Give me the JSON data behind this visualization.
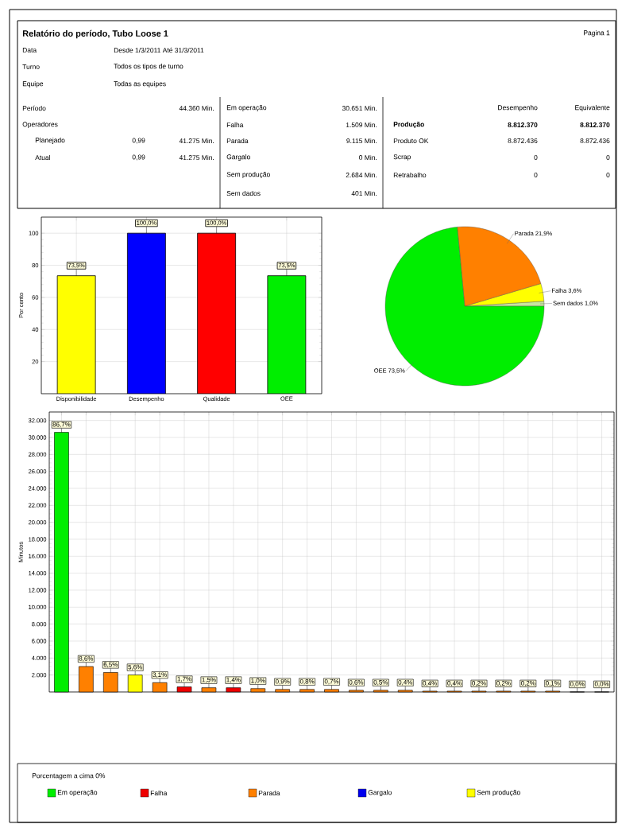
{
  "chart_data": [
    {
      "type": "other",
      "title": "Relatório do período,  Tubo Loose 1",
      "annotations": [
        "Pagina 1",
        "Data",
        "Desde 1/3/2011 Até 31/3/2011",
        "Turno",
        "Todos os tipos de turno",
        "Equipe",
        "Todas as equipes",
        "Período",
        "44.360 Min.",
        "Operadores",
        "Planejado",
        "0,99",
        "41.275 Min.",
        "Atual",
        "0,99",
        "41.275 Min.",
        "Em operação",
        "30.651 Min.",
        "Falha",
        "1.509 Min.",
        "Parada",
        "9.115 Min.",
        "Gargalo",
        "0 Min.",
        "Sem produção",
        "2.684 Min.",
        "Sem dados",
        "401 Min.",
        "Desempenho",
        "Equivalente",
        "Produção",
        "8.812.370",
        "8.812.370",
        "Produto OK",
        "8.872.436",
        "8.872.436",
        "Scrap",
        "0",
        "0",
        "Retrabalho",
        "0",
        "0"
      ]
    },
    {
      "type": "bar",
      "ylabel": "Por cento",
      "categories": [
        "Disponibilidade",
        "Desempenho",
        "Qualidade",
        "OEE"
      ],
      "values": [
        73.5,
        100,
        100,
        73.5
      ],
      "value_labels": [
        "73,5%",
        "100,0%",
        "100,0%",
        "73,5%"
      ],
      "colors": [
        "#ffff00",
        "#0000ff",
        "#ff0000",
        "#00ee00"
      ],
      "ylim": [
        0,
        110
      ],
      "yticks": [
        20,
        40,
        60,
        80,
        100
      ],
      "grid": true
    },
    {
      "type": "pie",
      "categories": [
        "Sem dados",
        "Falha",
        "Parada",
        "OEE"
      ],
      "values": [
        1.0,
        3.6,
        21.9,
        73.5
      ],
      "value_labels": [
        "1,0%",
        "3,6%",
        "21,9%",
        "73,5%"
      ],
      "colors": [
        "#c8e6a0",
        "#ffff00",
        "#ff8000",
        "#00ee00"
      ]
    },
    {
      "type": "bar",
      "ylabel": "Minutos",
      "legend_title": "Porcentagem a cima 0%",
      "legend": "bottom",
      "grid": true,
      "ylim": [
        0,
        33000
      ],
      "yticks": [
        {
          "value": 2000,
          "label": "2.000"
        },
        {
          "value": 4000,
          "label": "4.000"
        },
        {
          "value": 6000,
          "label": "6.000"
        },
        {
          "value": 8000,
          "label": "8.000"
        },
        {
          "value": 10000,
          "label": "10.000"
        },
        {
          "value": 12000,
          "label": "12.000"
        },
        {
          "value": 14000,
          "label": "14.000"
        },
        {
          "value": 16000,
          "label": "16.000"
        },
        {
          "value": 18000,
          "label": "18.000"
        },
        {
          "value": 20000,
          "label": "20.000"
        },
        {
          "value": 22000,
          "label": "22.000"
        },
        {
          "value": 24000,
          "label": "24.000"
        },
        {
          "value": 26000,
          "label": "26.000"
        },
        {
          "value": 28000,
          "label": "28.000"
        },
        {
          "value": 30000,
          "label": "30.000"
        },
        {
          "value": 32000,
          "label": "32.000"
        }
      ],
      "categories": [
        null,
        null,
        null,
        null,
        null,
        null,
        null,
        null,
        null,
        null,
        null,
        null,
        null,
        null,
        null,
        null,
        null,
        null,
        null,
        null,
        null,
        null,
        null
      ],
      "series": [
        {
          "name": "Em operação",
          "color": "#00ee00",
          "values": [
            30600,
            null,
            null,
            null,
            null,
            null,
            null,
            null,
            null,
            null,
            null,
            null,
            null,
            null,
            null,
            null,
            null,
            null,
            null,
            null,
            null,
            null,
            null
          ]
        },
        {
          "name": "Falha",
          "color": "#ee0000",
          "values": [
            null,
            null,
            null,
            null,
            null,
            600,
            null,
            500,
            null,
            null,
            null,
            null,
            null,
            null,
            null,
            null,
            null,
            null,
            null,
            null,
            null,
            null,
            null
          ]
        },
        {
          "name": "Parada",
          "color": "#ff8000",
          "values": [
            null,
            3000,
            2300,
            null,
            1100,
            null,
            500,
            null,
            400,
            300,
            300,
            300,
            200,
            200,
            200,
            100,
            100,
            100,
            100,
            100,
            100,
            0,
            0
          ]
        },
        {
          "name": "Gargalo",
          "color": "#0000ee",
          "values": [
            null,
            null,
            null,
            null,
            null,
            null,
            null,
            null,
            null,
            null,
            null,
            null,
            null,
            null,
            null,
            null,
            null,
            null,
            null,
            null,
            null,
            null,
            null
          ]
        },
        {
          "name": "Sem produção",
          "color": "#ffff00",
          "values": [
            null,
            null,
            null,
            2000,
            null,
            null,
            null,
            null,
            null,
            null,
            null,
            null,
            null,
            null,
            null,
            null,
            null,
            null,
            null,
            null,
            null,
            null,
            null
          ]
        }
      ],
      "annotations": [
        {
          "text": "86,7%",
          "y": 30600
        },
        {
          "text": "8,6%",
          "y": 3000
        },
        {
          "text": "6,5%",
          "y": 2300
        },
        {
          "text": "5,6%",
          "y": 2000
        },
        {
          "text": "3,1%",
          "y": 1100
        },
        {
          "text": "1,7%",
          "y": 600
        },
        {
          "text": "1,5%",
          "y": 500
        },
        {
          "text": "1,4%",
          "y": 500
        },
        {
          "text": "1,0%",
          "y": 400
        },
        {
          "text": "0,9%",
          "y": 300
        },
        {
          "text": "0,8%",
          "y": 300
        },
        {
          "text": "0,7%",
          "y": 300
        },
        {
          "text": "0,6%",
          "y": 200
        },
        {
          "text": "0,5%",
          "y": 200
        },
        {
          "text": "0,4%",
          "y": 200
        },
        {
          "text": "0,4%",
          "y": 100
        },
        {
          "text": "0,4%",
          "y": 100
        },
        {
          "text": "0,2%",
          "y": 100
        },
        {
          "text": "0,2%",
          "y": 100
        },
        {
          "text": "0,2%",
          "y": 100
        },
        {
          "text": "0,1%",
          "y": 100
        },
        {
          "text": "0,0%",
          "y": 0
        },
        {
          "text": "0,0%",
          "y": 0
        }
      ]
    }
  ]
}
